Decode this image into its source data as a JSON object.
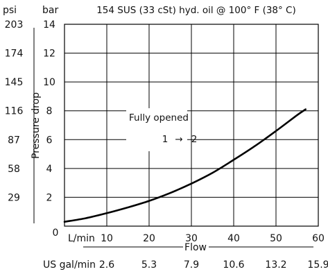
{
  "chart_data": {
    "type": "line",
    "title": "154 SUS (33 cSt) hyd. oil @ 100° F (38° C)",
    "xlabel": "Flow",
    "ylabel": "Pressure drop",
    "y_unit_bar": "bar",
    "y_unit_psi": "psi",
    "x_unit_lmin": "L/min",
    "x_unit_gal": "US gal/min",
    "xlim": [
      0,
      60
    ],
    "ylim": [
      0,
      14
    ],
    "x_ticks": [
      10,
      20,
      30,
      40,
      50,
      60
    ],
    "y_ticks": [
      2,
      4,
      6,
      8,
      10,
      12,
      14
    ],
    "y_zero_label": "0",
    "psi_ticks": [
      "29",
      "58",
      "87",
      "116",
      "145",
      "174",
      "203"
    ],
    "gal_ticks": [
      "2.6",
      "5.3",
      "7.9",
      "10.6",
      "13.2",
      "15.9"
    ],
    "grid": true,
    "annotation": {
      "label": "Fully opened",
      "from_port": "1",
      "arrow": "→",
      "to_port": "2"
    },
    "series": [
      {
        "x": [
          0,
          5,
          10,
          15,
          20,
          25,
          30,
          35,
          40,
          45,
          50,
          55,
          57
        ],
        "y": [
          0.3,
          0.55,
          0.9,
          1.3,
          1.75,
          2.3,
          2.95,
          3.7,
          4.6,
          5.55,
          6.6,
          7.7,
          8.1
        ]
      }
    ]
  }
}
